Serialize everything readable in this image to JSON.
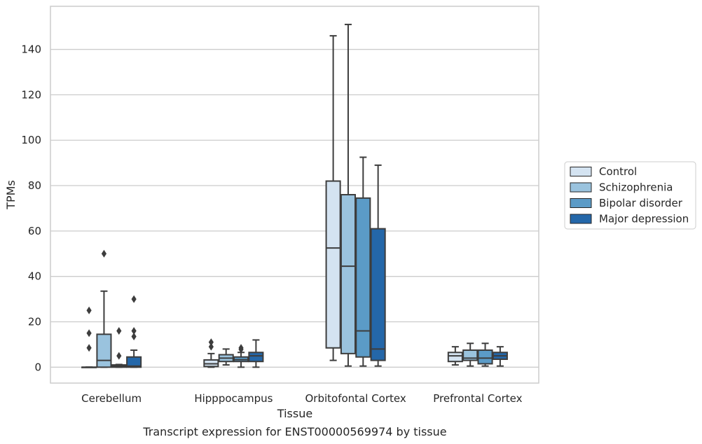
{
  "caption": "Transcript expression for ENST00000569974 by tissue",
  "chart_data": {
    "type": "box",
    "title": "",
    "xlabel": "Tissue",
    "ylabel": "TPMs",
    "ylim": [
      -7,
      159
    ],
    "yticks": [
      0,
      20,
      40,
      60,
      80,
      100,
      120,
      140
    ],
    "grid": "horizontal",
    "legend_position": "right",
    "categories": [
      "Cerebellum",
      "Hipppocampus",
      "Orbitofontal Cortex",
      "Prefrontal Cortex"
    ],
    "series": [
      {
        "name": "Control",
        "color": "#d4e3f1",
        "boxes": [
          {
            "whislo": 0,
            "q1": 0,
            "med": 0,
            "q3": 0,
            "whishi": 0,
            "fliers": [
              25,
              15,
              8.5
            ]
          },
          {
            "whislo": 0,
            "q1": 0.3,
            "med": 1.5,
            "q3": 3.2,
            "whishi": 6,
            "fliers": [
              9,
              11
            ]
          },
          {
            "whislo": 3,
            "q1": 8.5,
            "med": 52.5,
            "q3": 82,
            "whishi": 146,
            "fliers": []
          },
          {
            "whislo": 1,
            "q1": 2.5,
            "med": 5,
            "q3": 6.5,
            "whishi": 9,
            "fliers": []
          }
        ]
      },
      {
        "name": "Schizophrenia",
        "color": "#9ac3de",
        "boxes": [
          {
            "whislo": 0,
            "q1": 0,
            "med": 3,
            "q3": 14.5,
            "whishi": 33.5,
            "fliers": [
              50
            ]
          },
          {
            "whislo": 1,
            "q1": 2.5,
            "med": 4,
            "q3": 5.5,
            "whishi": 8,
            "fliers": []
          },
          {
            "whislo": 0.5,
            "q1": 6,
            "med": 44.5,
            "q3": 76,
            "whishi": 151,
            "fliers": []
          },
          {
            "whislo": 0.5,
            "q1": 3,
            "med": 4,
            "q3": 7.5,
            "whishi": 10.5,
            "fliers": []
          }
        ]
      },
      {
        "name": "Bipolar disorder",
        "color": "#5b9bc7",
        "boxes": [
          {
            "whislo": 0,
            "q1": 0,
            "med": 0.4,
            "q3": 1,
            "whishi": 1.2,
            "fliers": [
              16,
              5
            ]
          },
          {
            "whislo": 0,
            "q1": 2.5,
            "med": 3.3,
            "q3": 4.5,
            "whishi": 6.5,
            "fliers": [
              8.5,
              7.8
            ]
          },
          {
            "whislo": 0.5,
            "q1": 4.5,
            "med": 16,
            "q3": 74.5,
            "whishi": 92.5,
            "fliers": []
          },
          {
            "whislo": 0.5,
            "q1": 1.5,
            "med": 4,
            "q3": 7.5,
            "whishi": 10.5,
            "fliers": []
          }
        ]
      },
      {
        "name": "Major depression",
        "color": "#2467a9",
        "boxes": [
          {
            "whislo": 0,
            "q1": 0,
            "med": 0.5,
            "q3": 4.5,
            "whishi": 7.5,
            "fliers": [
              30,
              16,
              13.5
            ]
          },
          {
            "whislo": 0,
            "q1": 2.5,
            "med": 5,
            "q3": 6.5,
            "whishi": 12,
            "fliers": []
          },
          {
            "whislo": 0.5,
            "q1": 3,
            "med": 8,
            "q3": 61,
            "whishi": 89,
            "fliers": []
          },
          {
            "whislo": 0.5,
            "q1": 3.5,
            "med": 5,
            "q3": 6.5,
            "whishi": 9,
            "fliers": []
          }
        ]
      }
    ]
  }
}
